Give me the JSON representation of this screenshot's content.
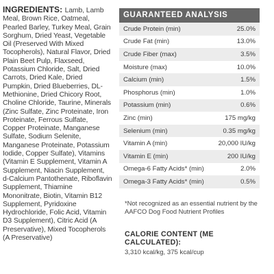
{
  "ingredients": {
    "title": "INGREDIENTS:",
    "text": "Lamb, Lamb Meal, Brown Rice, Oatmeal, Pearled Barley, Turkey Meal, Grain Sorghum, Dried Yeast, Vegetable Oil (Preserved With Mixed Tocopherols), Natural Flavor, Dried Plain Beet Pulp, Flaxseed, Potassium Chloride, Salt, Dried Carrots, Dried Kale, Dried Pumpkin, Dried Blueberries, DL-Methionine, Dried Chicory Root, Choline Chloride, Taurine, Minerals (Zinc Sulfate, Zinc Proteinate, Iron Proteinate, Ferrous Sulfate, Copper Proteinate, Manganese Sulfate, Sodium Selenite, Manganese Proteinate, Potassium Iodide, Copper Sulfate), Vitamins (Vitamin E Supplement, Vitamin A Supplement, Niacin Supplement, d-Calcium Pantothenate, Riboflavin Supplement, Thiamine Mononitrate, Biotin, Vitamin B12 Supplement, Pyridoxine Hydrochloride, Folic Acid, Vitamin D3 Supplement), Citric Acid (A Preservative), Mixed Tocopherols (A Preservative)"
  },
  "analysis": {
    "title": "GUARANTEED ANALYSIS",
    "rows": [
      {
        "name": "Crude Protein (min)",
        "value": "25.0%"
      },
      {
        "name": "Crude Fat (min)",
        "value": "13.0%"
      },
      {
        "name": "Crude Fiber (max)",
        "value": "3.5%"
      },
      {
        "name": "Moisture (max)",
        "value": "10.0%"
      },
      {
        "name": "Calcium (min)",
        "value": "1.5%"
      },
      {
        "name": "Phosphorus (min)",
        "value": "1.0%"
      },
      {
        "name": "Potassium (min)",
        "value": "0.6%"
      },
      {
        "name": "Zinc (min)",
        "value": "175 mg/kg"
      },
      {
        "name": "Selenium (min)",
        "value": "0.35 mg/kg"
      },
      {
        "name": "Vitamin A (min)",
        "value": "20,000 IU/kg"
      },
      {
        "name": "Vitamin E (min)",
        "value": "200 IU/kg"
      },
      {
        "name": "Omega-6 Fatty Acids* (min)",
        "value": "2.0%"
      },
      {
        "name": "Omega-3 Fatty Acids* (min)",
        "value": "0.5%"
      }
    ],
    "footnote": "*Not recognized as an essential nutrient by the AAFCO Dog Food Nutrient Profiles"
  },
  "calorie": {
    "title": "CALORIE CONTENT (ME CALCULATED):",
    "value": "3,310 kcal/kg, 375 kcal/cup"
  }
}
